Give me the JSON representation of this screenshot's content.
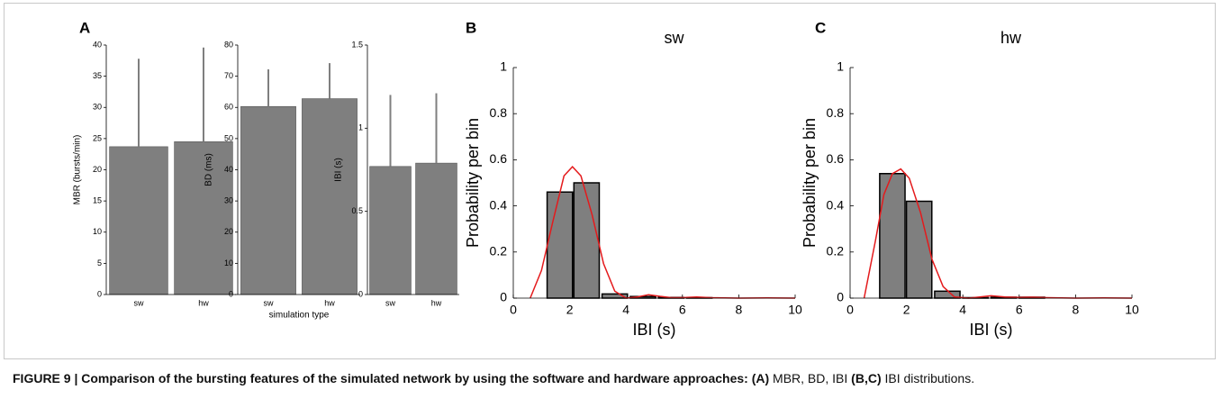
{
  "chart_data": [
    {
      "type": "bar",
      "panel": "A",
      "ylabel": "MBR (bursts/min)",
      "categories": [
        "sw",
        "hw"
      ],
      "values": [
        23.7,
        24.5
      ],
      "errors": [
        14.1,
        15.1
      ],
      "color": "#7f7f7f",
      "error_color": "#7f7f7f",
      "ylim": [
        0,
        40
      ],
      "yticks": [
        0,
        5,
        10,
        15,
        20,
        25,
        30,
        35,
        40
      ]
    },
    {
      "type": "bar",
      "ylabel": "BD (ms)",
      "xlabel": "simulation type",
      "categories": [
        "sw",
        "hw"
      ],
      "values": [
        60.3,
        62.8
      ],
      "errors": [
        11.9,
        11.4
      ],
      "color": "#7f7f7f",
      "error_color": "#7f7f7f",
      "ylim": [
        0,
        80
      ],
      "yticks": [
        0,
        10,
        20,
        30,
        40,
        50,
        60,
        70,
        80
      ]
    },
    {
      "type": "bar",
      "ylabel": "IBI (s)",
      "categories": [
        "sw",
        "hw"
      ],
      "values": [
        0.77,
        0.79
      ],
      "errors": [
        0.43,
        0.42
      ],
      "color": "#7f7f7f",
      "error_color": "#7f7f7f",
      "ylim": [
        0,
        1.5
      ],
      "yticks": [
        0,
        0.5,
        1,
        1.5
      ]
    },
    {
      "type": "hist",
      "panel": "B",
      "title": "sw",
      "xlabel": "IBI (s)",
      "ylabel": "Probability per bin",
      "x": [
        1.65,
        2.6,
        3.6,
        4.6,
        5.6,
        6.6
      ],
      "values": [
        0.46,
        0.5,
        0.018,
        0.007,
        0.003,
        0.002
      ],
      "color": "#7f7f7f",
      "fit": {
        "color": "#e41a1c",
        "x": [
          0.6,
          1,
          1.4,
          1.8,
          2.1,
          2.4,
          2.8,
          3.2,
          3.6,
          4,
          4.4,
          4.8,
          5.2,
          5.6,
          6,
          6.5,
          7,
          8,
          9,
          10
        ],
        "y": [
          0,
          0.12,
          0.33,
          0.53,
          0.57,
          0.53,
          0.36,
          0.15,
          0.03,
          0,
          0.005,
          0.015,
          0.008,
          0.002,
          0.002,
          0.005,
          0.002,
          0,
          0.001,
          0
        ]
      },
      "xlim": [
        0,
        10
      ],
      "xticks": [
        0,
        2,
        4,
        6,
        8,
        10
      ],
      "ylim": [
        0,
        1
      ],
      "yticks": [
        0,
        0.2,
        0.4,
        0.6,
        0.8,
        1
      ]
    },
    {
      "type": "hist",
      "panel": "C",
      "title": "hw",
      "xlabel": "IBI (s)",
      "ylabel": "Probability per bin",
      "x": [
        1.5,
        2.45,
        3.45,
        4.45,
        5.45,
        6.45
      ],
      "values": [
        0.54,
        0.42,
        0.03,
        0.002,
        0.004,
        0.004
      ],
      "color": "#7f7f7f",
      "fit": {
        "color": "#e41a1c",
        "x": [
          0.5,
          0.9,
          1.2,
          1.5,
          1.8,
          2.1,
          2.5,
          2.9,
          3.3,
          3.7,
          4.2,
          4.6,
          5,
          5.5,
          6,
          6.5,
          7,
          8,
          9,
          10
        ],
        "y": [
          0,
          0.25,
          0.45,
          0.54,
          0.56,
          0.52,
          0.37,
          0.17,
          0.05,
          0.005,
          0,
          0.005,
          0.01,
          0.005,
          0.003,
          0.004,
          0.002,
          0,
          0.001,
          0
        ]
      },
      "xlim": [
        0,
        10
      ],
      "xticks": [
        0,
        2,
        4,
        6,
        8,
        10
      ],
      "ylim": [
        0,
        1
      ],
      "yticks": [
        0,
        0.2,
        0.4,
        0.6,
        0.8,
        1
      ]
    }
  ],
  "caption": {
    "runs": [
      {
        "text": "FIGURE 9 | Comparison of the bursting features of the simulated network by using the software and hardware approaches: (A)",
        "bold": true
      },
      {
        "text": " MBR, BD, IBI ",
        "bold": false
      },
      {
        "text": "(B,C)",
        "bold": true
      },
      {
        "text": " IBI distributions.",
        "bold": false
      }
    ]
  }
}
